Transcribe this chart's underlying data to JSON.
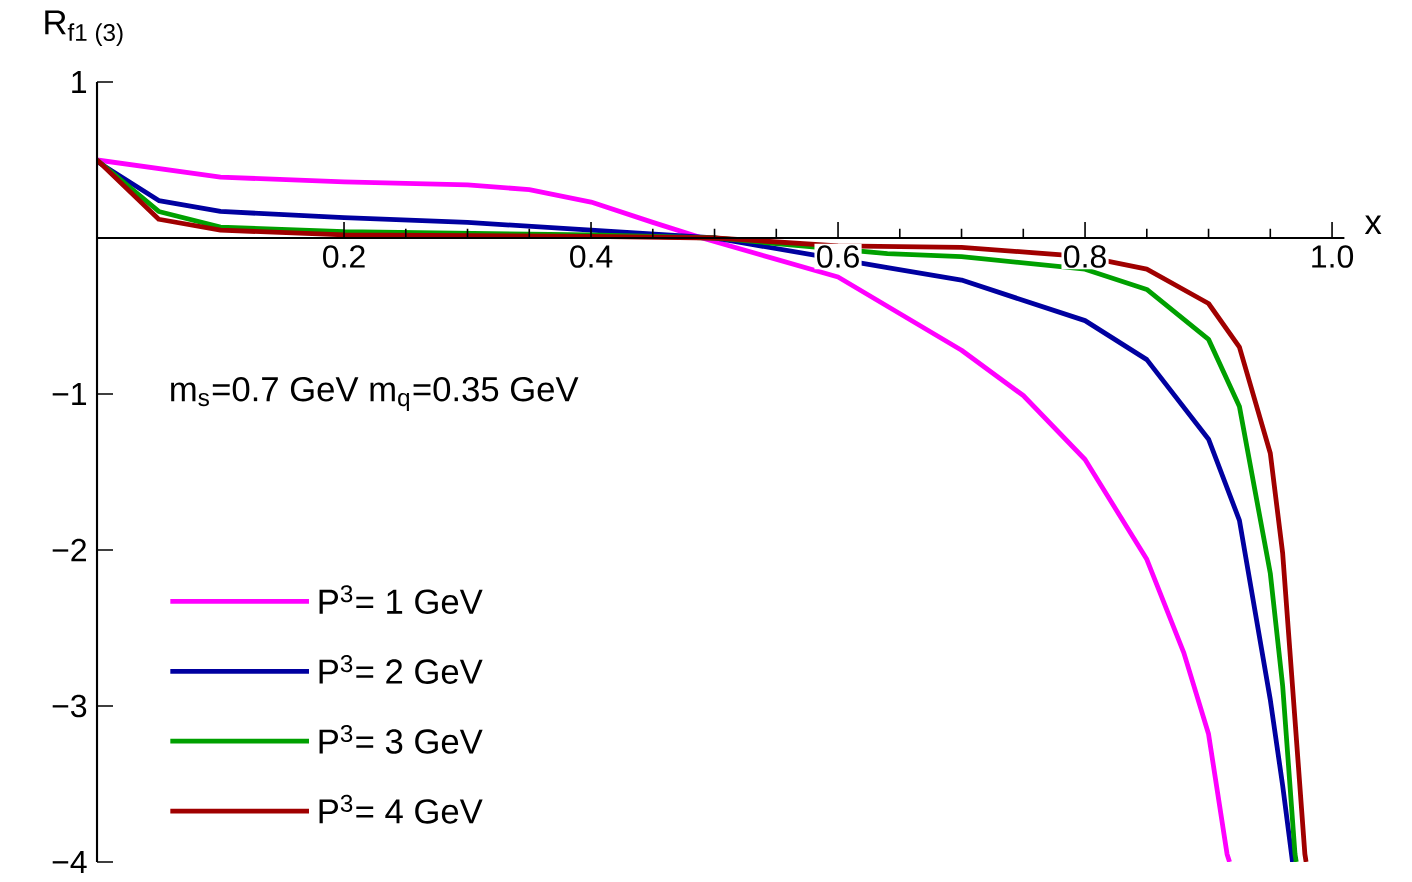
{
  "chart_data": {
    "type": "line",
    "ylabel": "R$_{f1 (3)}$",
    "xlabel": "x",
    "annotations": [
      "m$_{s}$=0.7 GeV   m$_{q}$=0.35 GeV"
    ],
    "xlim": [
      0,
      1.01
    ],
    "ylim": [
      -4,
      1
    ],
    "xticks": [
      0.2,
      0.4,
      0.6,
      0.8,
      {
        "value": 1,
        "label": "1.0"
      }
    ],
    "yticks": [
      {
        "value": -4,
        "label": "−4"
      },
      {
        "value": -3,
        "label": "−3"
      },
      {
        "value": -2,
        "label": "−2"
      },
      {
        "value": -1,
        "label": "−1"
      },
      1
    ],
    "legend": "bottom left",
    "grid": false,
    "marker": "none",
    "line_style": "solid",
    "series": [
      {
        "name": "P$^{3}$= 1 GeV",
        "color": "#ff00ff",
        "x": [
          0,
          0.1,
          0.2,
          0.3,
          0.35,
          0.4,
          0.45,
          0.49,
          0.6,
          0.7,
          0.75,
          0.8,
          0.85,
          0.88,
          0.9,
          0.915,
          0.917
        ],
        "values": [
          0.5,
          0.39,
          0.36,
          0.34,
          0.31,
          0.23,
          0.1,
          0,
          -0.25,
          -0.72,
          -1.01,
          -1.42,
          -2.06,
          -2.66,
          -3.18,
          -3.95,
          -4
        ]
      },
      {
        "name": "P$^{3}$= 2 GeV",
        "color": "#0000a0",
        "x": [
          0,
          0.05,
          0.1,
          0.2,
          0.3,
          0.4,
          0.5,
          0.64,
          0.7,
          0.8,
          0.85,
          0.9,
          0.925,
          0.95,
          0.96,
          0.968
        ],
        "values": [
          0.49,
          0.24,
          0.17,
          0.13,
          0.1,
          0.05,
          0,
          -0.19,
          -0.27,
          -0.53,
          -0.78,
          -1.29,
          -1.81,
          -2.96,
          -3.51,
          -4
        ]
      },
      {
        "name": "P$^{3}$= 3 GeV",
        "color": "#00a000",
        "x": [
          0,
          0.05,
          0.1,
          0.2,
          0.3,
          0.4,
          0.5,
          0.64,
          0.7,
          0.8,
          0.85,
          0.9,
          0.925,
          0.95,
          0.96,
          0.97,
          0.971
        ],
        "values": [
          0.5,
          0.17,
          0.07,
          0.04,
          0.03,
          0.02,
          0,
          -0.1,
          -0.12,
          -0.2,
          -0.33,
          -0.65,
          -1.08,
          -2.15,
          -2.87,
          -3.95,
          -4
        ]
      },
      {
        "name": "P$^{3}$= 4 GeV",
        "color": "#a00000",
        "x": [
          0,
          0.05,
          0.1,
          0.2,
          0.4,
          0.5,
          0.6,
          0.7,
          0.8,
          0.85,
          0.9,
          0.925,
          0.95,
          0.96,
          0.97,
          0.978,
          0.979
        ],
        "values": [
          0.5,
          0.12,
          0.05,
          0.02,
          0.01,
          0,
          -0.05,
          -0.06,
          -0.12,
          -0.2,
          -0.42,
          -0.7,
          -1.38,
          -2.02,
          -3.09,
          -3.95,
          -4
        ]
      }
    ]
  }
}
